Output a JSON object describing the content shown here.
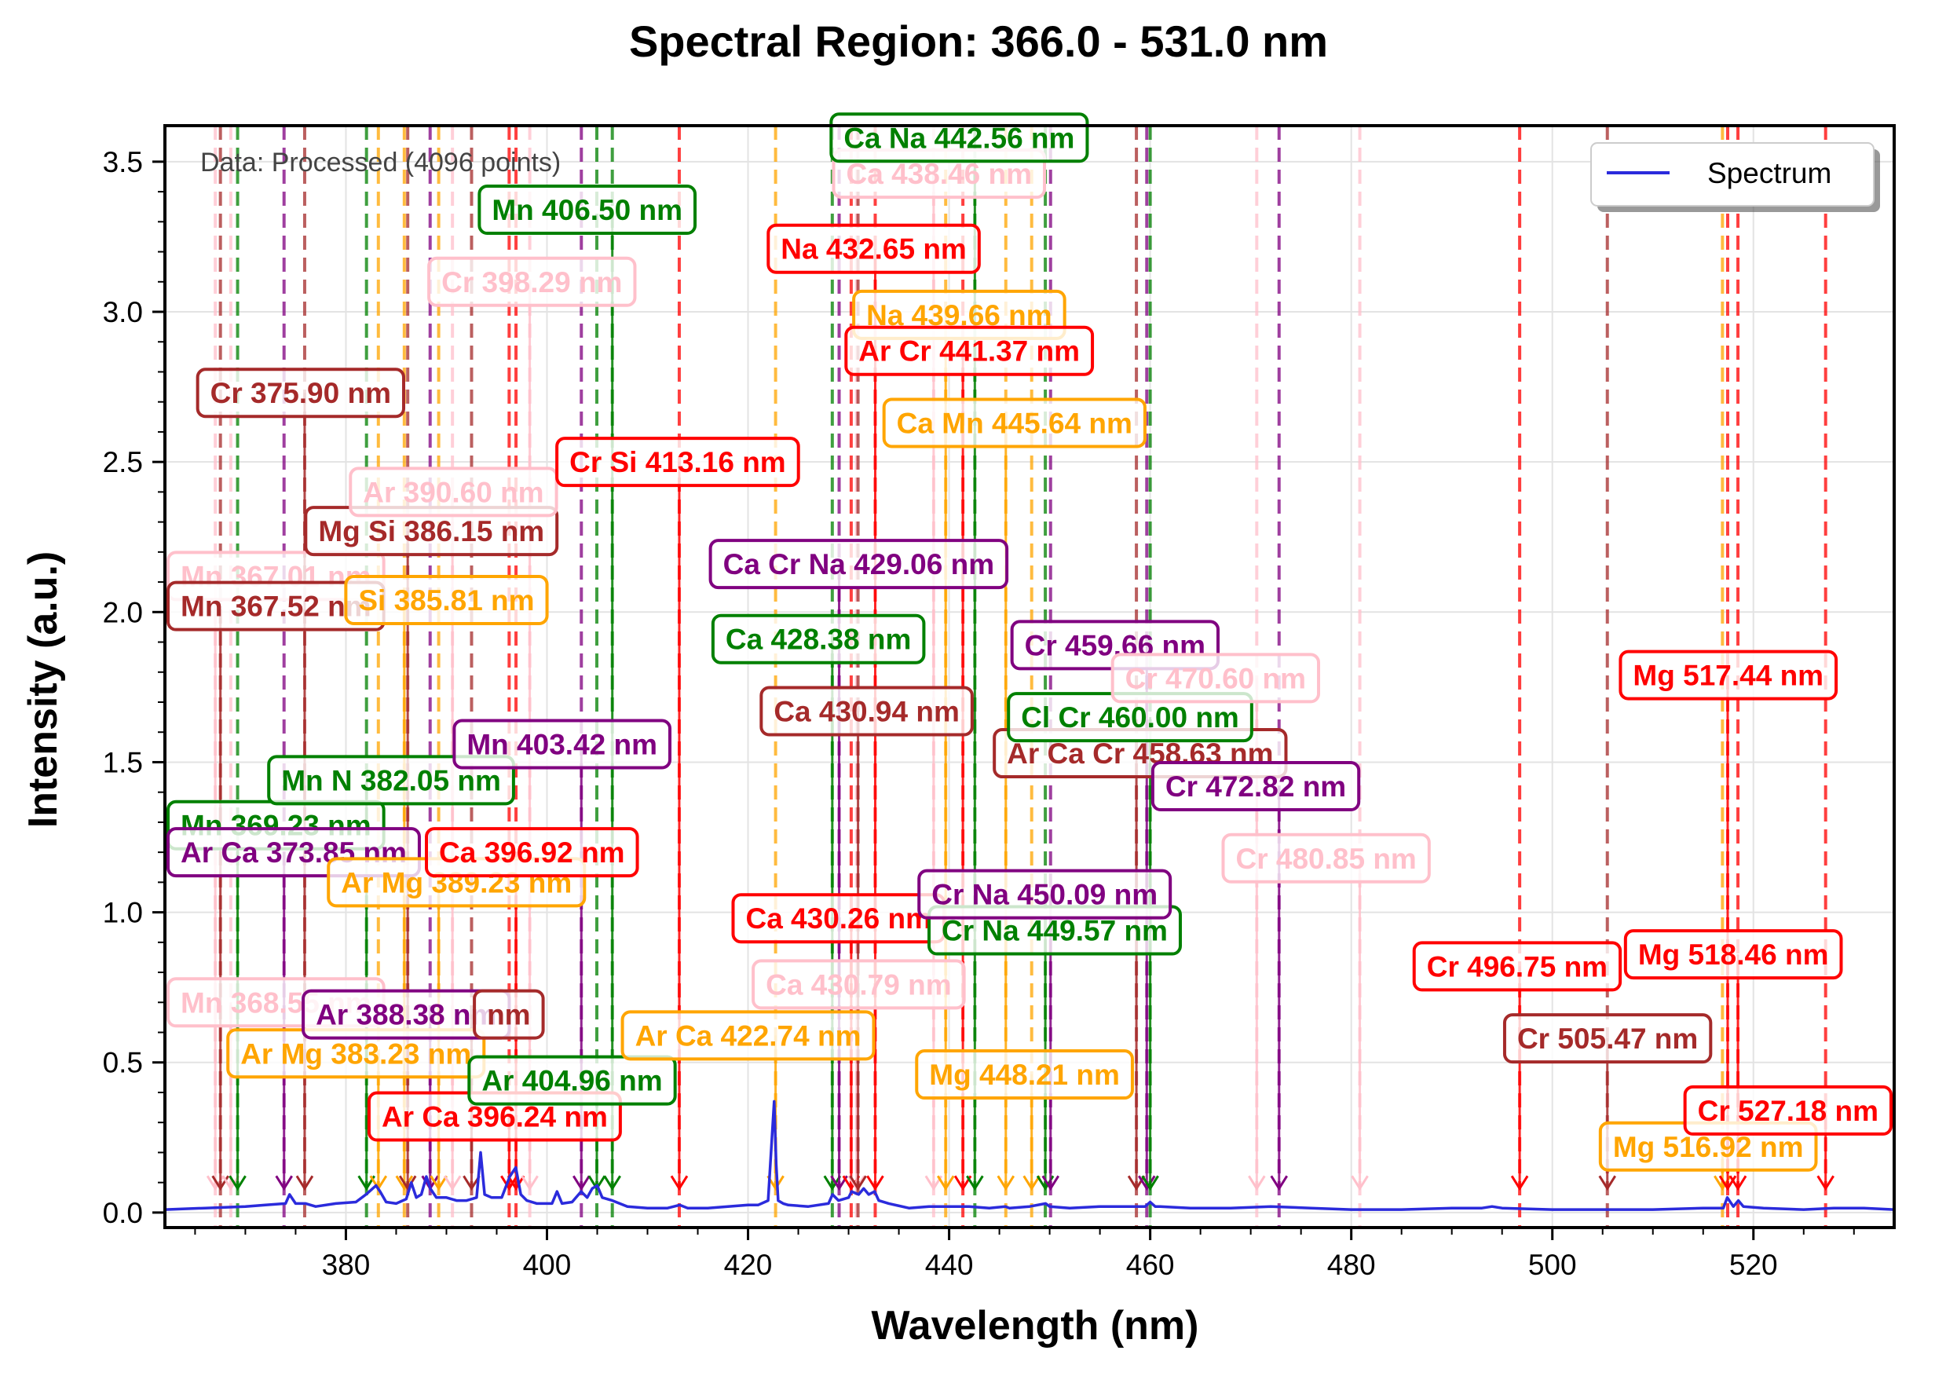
{
  "chart_data": {
    "type": "line",
    "title": "Spectral Region: 366.0 - 531.0 nm",
    "xlabel": "Wavelength (nm)",
    "ylabel": "Intensity (a.u.)",
    "xlim": [
      362,
      534
    ],
    "ylim": [
      -0.05,
      3.62
    ],
    "xticks": [
      380,
      400,
      420,
      440,
      460,
      480,
      500,
      520
    ],
    "yticks": [
      0.0,
      0.5,
      1.0,
      1.5,
      2.0,
      2.5,
      3.0,
      3.5
    ],
    "ytick_labels": [
      "0.0",
      "0.5",
      "1.0",
      "1.5",
      "2.0",
      "2.5",
      "3.0",
      "3.5"
    ],
    "grid": true,
    "legend_position": "top-right",
    "note": "Data: Processed (4096 points)",
    "series": [
      {
        "name": "Spectrum",
        "color": "#2b2bdc",
        "x": [
          362.0,
          366.0,
          370.0,
          372.0,
          374.0,
          374.4,
          375.0,
          376.0,
          377.0,
          379.0,
          381.0,
          382.0,
          383.0,
          383.4,
          384.0,
          385.0,
          386.0,
          386.5,
          387.0,
          387.5,
          388.0,
          388.4,
          389.0,
          390.0,
          391.0,
          392.0,
          393.0,
          393.4,
          393.8,
          394.5,
          395.5,
          396.3,
          396.9,
          397.4,
          398.0,
          399.0,
          400.5,
          401.0,
          401.5,
          402.5,
          403.4,
          404.0,
          404.5,
          405.0,
          405.5,
          406.5,
          408.0,
          410.0,
          412.0,
          413.2,
          414.0,
          416.0,
          418.0,
          420.0,
          421.0,
          422.0,
          422.6,
          422.8,
          423.0,
          423.5,
          424.0,
          426.0,
          428.0,
          428.4,
          429.0,
          430.0,
          430.3,
          431.0,
          431.5,
          432.0,
          432.6,
          433.0,
          434.0,
          436.0,
          438.0,
          440.0,
          442.0,
          444.0,
          445.6,
          446.0,
          448.0,
          449.6,
          450.0,
          452.0,
          455.0,
          458.0,
          459.5,
          460.0,
          460.5,
          461.0,
          464.0,
          468.0,
          472.0,
          476.0,
          480.0,
          485.0,
          490.0,
          493.0,
          494.0,
          495.0,
          500.0,
          505.0,
          510.0,
          515.0,
          517.0,
          517.4,
          518.0,
          518.5,
          519.0,
          521.0,
          525.0,
          528.0,
          531.0,
          534.0
        ],
        "y": [
          0.01,
          0.015,
          0.02,
          0.025,
          0.03,
          0.06,
          0.03,
          0.03,
          0.02,
          0.03,
          0.035,
          0.06,
          0.09,
          0.07,
          0.035,
          0.03,
          0.045,
          0.1,
          0.05,
          0.06,
          0.12,
          0.08,
          0.05,
          0.05,
          0.04,
          0.04,
          0.05,
          0.2,
          0.06,
          0.05,
          0.05,
          0.12,
          0.15,
          0.06,
          0.04,
          0.03,
          0.03,
          0.07,
          0.03,
          0.035,
          0.07,
          0.05,
          0.08,
          0.09,
          0.05,
          0.04,
          0.02,
          0.015,
          0.015,
          0.025,
          0.015,
          0.015,
          0.02,
          0.025,
          0.025,
          0.04,
          0.37,
          0.16,
          0.04,
          0.03,
          0.025,
          0.02,
          0.03,
          0.06,
          0.04,
          0.05,
          0.07,
          0.06,
          0.08,
          0.06,
          0.07,
          0.04,
          0.03,
          0.015,
          0.02,
          0.02,
          0.02,
          0.015,
          0.02,
          0.015,
          0.02,
          0.03,
          0.02,
          0.015,
          0.02,
          0.02,
          0.02,
          0.035,
          0.02,
          0.02,
          0.015,
          0.015,
          0.02,
          0.015,
          0.01,
          0.01,
          0.015,
          0.015,
          0.02,
          0.015,
          0.01,
          0.01,
          0.01,
          0.015,
          0.015,
          0.05,
          0.02,
          0.04,
          0.02,
          0.015,
          0.01,
          0.015,
          0.015,
          0.01
        ]
      }
    ],
    "annotations": [
      {
        "label": "Mn 367.01 nm",
        "x": 367.01,
        "color": "#ffc0cb",
        "label_pos": [
          367.0,
          2.12
        ]
      },
      {
        "label": "Mn 367.52 nm",
        "x": 367.52,
        "color": "#a52a2a",
        "label_pos": [
          367.6,
          2.02
        ]
      },
      {
        "label": "Mn 368.55 nm",
        "x": 368.55,
        "color": "#ffc0cb",
        "label_pos": [
          368.2,
          0.7
        ]
      },
      {
        "label": "Mn 369.23 nm",
        "x": 369.23,
        "color": "#008000",
        "label_pos": [
          370.0,
          1.29
        ]
      },
      {
        "label": "Ar Ca 373.85 nm",
        "x": 373.85,
        "color": "#800080",
        "label_pos": [
          374.5,
          1.2
        ]
      },
      {
        "label": "Cr 375.90 nm",
        "x": 375.9,
        "color": "#a52a2a",
        "label_pos": [
          375.5,
          2.73
        ]
      },
      {
        "label": "Mn N 382.05 nm",
        "x": 382.05,
        "color": "#008000",
        "label_pos": [
          384.5,
          1.44
        ]
      },
      {
        "label": "Ar Mg 383.23 nm",
        "x": 383.23,
        "color": "#ffa500",
        "label_pos": [
          381.0,
          0.53
        ]
      },
      {
        "label": "Si 385.81 nm",
        "x": 385.81,
        "color": "#ffa500",
        "label_pos": [
          390.0,
          2.04
        ]
      },
      {
        "label": "Mg Si 386.15 nm",
        "x": 386.15,
        "color": "#a52a2a",
        "label_pos": [
          388.5,
          2.27
        ]
      },
      {
        "label": "Ar 388.38 nm",
        "x": 388.38,
        "color": "#800080",
        "label_pos": [
          386.0,
          0.66
        ]
      },
      {
        "label": "Ar Mg 389.23 nm",
        "x": 389.23,
        "color": "#ffa500",
        "label_pos": [
          391.0,
          1.1
        ]
      },
      {
        "label": "Ar 390.60 nm",
        "x": 390.6,
        "color": "#ffc0cb",
        "label_pos": [
          390.7,
          2.4
        ]
      },
      {
        "label": "nm",
        "x": 392.5,
        "color": "#a52a2a",
        "label_pos": [
          396.2,
          0.66
        ]
      },
      {
        "label": "Ar Ca 396.24 nm",
        "x": 396.24,
        "color": "#ff0000",
        "label_pos": [
          394.8,
          0.32
        ]
      },
      {
        "label": "Ca 396.92 nm",
        "x": 396.92,
        "color": "#ff0000",
        "label_pos": [
          398.5,
          1.2
        ]
      },
      {
        "label": "Cr 398.29 nm",
        "x": 398.29,
        "color": "#ffc0cb",
        "label_pos": [
          398.5,
          3.1
        ]
      },
      {
        "label": "Mn 403.42 nm",
        "x": 403.42,
        "color": "#800080",
        "label_pos": [
          401.5,
          1.56
        ]
      },
      {
        "label": "Ar 404.96 nm",
        "x": 404.96,
        "color": "#008000",
        "label_pos": [
          402.5,
          0.44
        ]
      },
      {
        "label": "Mn 406.50 nm",
        "x": 406.5,
        "color": "#008000",
        "label_pos": [
          404.0,
          3.34
        ]
      },
      {
        "label": "Cr Si 413.16 nm",
        "x": 413.16,
        "color": "#ff0000",
        "label_pos": [
          413.0,
          2.5
        ]
      },
      {
        "label": "Ar Ca 422.74 nm",
        "x": 422.74,
        "color": "#ffa500",
        "label_pos": [
          420.0,
          0.59
        ]
      },
      {
        "label": "Ca 428.38 nm",
        "x": 428.38,
        "color": "#008000",
        "label_pos": [
          427.0,
          1.91
        ]
      },
      {
        "label": "Ca Cr Na 429.06 nm",
        "x": 429.06,
        "color": "#800080",
        "label_pos": [
          431.0,
          2.16
        ]
      },
      {
        "label": "Ca 430.26 nm",
        "x": 430.26,
        "color": "#ff0000",
        "label_pos": [
          429.0,
          0.98
        ]
      },
      {
        "label": "Ca 430.79 nm",
        "x": 430.79,
        "color": "#ffc0cb",
        "label_pos": [
          431.0,
          0.76
        ]
      },
      {
        "label": "Ca 430.94 nm",
        "x": 430.94,
        "color": "#a52a2a",
        "label_pos": [
          431.8,
          1.67
        ]
      },
      {
        "label": "Na 432.65 nm",
        "x": 432.65,
        "color": "#ff0000",
        "label_pos": [
          432.5,
          3.21
        ]
      },
      {
        "label": "Ca 438.46 nm",
        "x": 438.46,
        "color": "#ffc0cb",
        "label_pos": [
          439.0,
          3.46
        ]
      },
      {
        "label": "Na 439.66 nm",
        "x": 439.66,
        "color": "#ffa500",
        "label_pos": [
          441.0,
          2.99
        ]
      },
      {
        "label": "Ar Cr 441.37 nm",
        "x": 441.37,
        "color": "#ff0000",
        "label_pos": [
          442.0,
          2.87
        ]
      },
      {
        "label": "Ca Na 442.56 nm",
        "x": 442.56,
        "color": "#008000",
        "label_pos": [
          441.0,
          3.58
        ]
      },
      {
        "label": "Ca Mn 445.64 nm",
        "x": 445.64,
        "color": "#ffa500",
        "label_pos": [
          446.5,
          2.63
        ]
      },
      {
        "label": "Mg 448.21 nm",
        "x": 448.21,
        "color": "#ffa500",
        "label_pos": [
          447.5,
          0.46
        ]
      },
      {
        "label": "Cr Na 449.57 nm",
        "x": 449.57,
        "color": "#008000",
        "label_pos": [
          450.5,
          0.94
        ]
      },
      {
        "label": "Cr Na 450.09 nm",
        "x": 450.09,
        "color": "#800080",
        "label_pos": [
          449.5,
          1.06
        ]
      },
      {
        "label": "Ar Ca Cr 458.63 nm",
        "x": 458.63,
        "color": "#a52a2a",
        "label_pos": [
          459.0,
          1.53
        ]
      },
      {
        "label": "Cr 459.66 nm",
        "x": 459.66,
        "color": "#800080",
        "label_pos": [
          456.5,
          1.89
        ]
      },
      {
        "label": "Cl Cr 460.00 nm",
        "x": 460.0,
        "color": "#008000",
        "label_pos": [
          458.0,
          1.65
        ]
      },
      {
        "label": "Cr 470.60 nm",
        "x": 470.6,
        "color": "#ffc0cb",
        "label_pos": [
          466.5,
          1.78
        ]
      },
      {
        "label": "Cr 472.82 nm",
        "x": 472.82,
        "color": "#800080",
        "label_pos": [
          470.5,
          1.42
        ]
      },
      {
        "label": "Cr 480.85 nm",
        "x": 480.85,
        "color": "#ffc0cb",
        "label_pos": [
          477.5,
          1.18
        ]
      },
      {
        "label": "Cr 496.75 nm",
        "x": 496.75,
        "color": "#ff0000",
        "label_pos": [
          496.5,
          0.82
        ]
      },
      {
        "label": "Cr 505.47 nm",
        "x": 505.47,
        "color": "#a52a2a",
        "label_pos": [
          505.5,
          0.58
        ]
      },
      {
        "label": "Mg 516.92 nm",
        "x": 516.92,
        "color": "#ffa500",
        "label_pos": [
          515.5,
          0.22
        ]
      },
      {
        "label": "Mg 517.44 nm",
        "x": 517.44,
        "color": "#ff0000",
        "label_pos": [
          517.5,
          1.79
        ]
      },
      {
        "label": "Mg 518.46 nm",
        "x": 518.46,
        "color": "#ff0000",
        "label_pos": [
          518.0,
          0.86
        ]
      },
      {
        "label": "Cr 527.18 nm",
        "x": 527.18,
        "color": "#ff0000",
        "label_pos": [
          524.0,
          0.34
        ]
      }
    ]
  }
}
